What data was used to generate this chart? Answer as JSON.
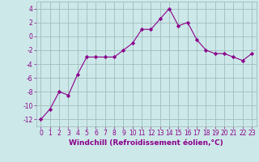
{
  "x": [
    0,
    1,
    2,
    3,
    4,
    5,
    6,
    7,
    8,
    9,
    10,
    11,
    12,
    13,
    14,
    15,
    16,
    17,
    18,
    19,
    20,
    21,
    22,
    23
  ],
  "y": [
    -12,
    -10.5,
    -8,
    -8.5,
    -5.5,
    -3,
    -3,
    -3,
    -3,
    -2,
    -1,
    1,
    1,
    2.5,
    4,
    1.5,
    2,
    -0.5,
    -2,
    -2.5,
    -2.5,
    -3,
    -3.5,
    -2.5
  ],
  "line_color": "#8B008B",
  "marker_color": "#8B008B",
  "bg_color": "#cce8e8",
  "grid_color": "#a0bebe",
  "xlabel": "Windchill (Refroidissement éolien,°C)",
  "xlim": [
    -0.5,
    23.5
  ],
  "ylim": [
    -13,
    5
  ],
  "yticks": [
    -12,
    -10,
    -8,
    -6,
    -4,
    -2,
    0,
    2,
    4
  ],
  "xticks": [
    0,
    1,
    2,
    3,
    4,
    5,
    6,
    7,
    8,
    9,
    10,
    11,
    12,
    13,
    14,
    15,
    16,
    17,
    18,
    19,
    20,
    21,
    22,
    23
  ],
  "xtick_labels": [
    "0",
    "1",
    "2",
    "3",
    "4",
    "5",
    "6",
    "7",
    "8",
    "9",
    "10",
    "11",
    "12",
    "13",
    "14",
    "15",
    "16",
    "17",
    "18",
    "19",
    "20",
    "21",
    "22",
    "23"
  ],
  "tick_fontsize": 5.5,
  "xlabel_fontsize": 6.5
}
